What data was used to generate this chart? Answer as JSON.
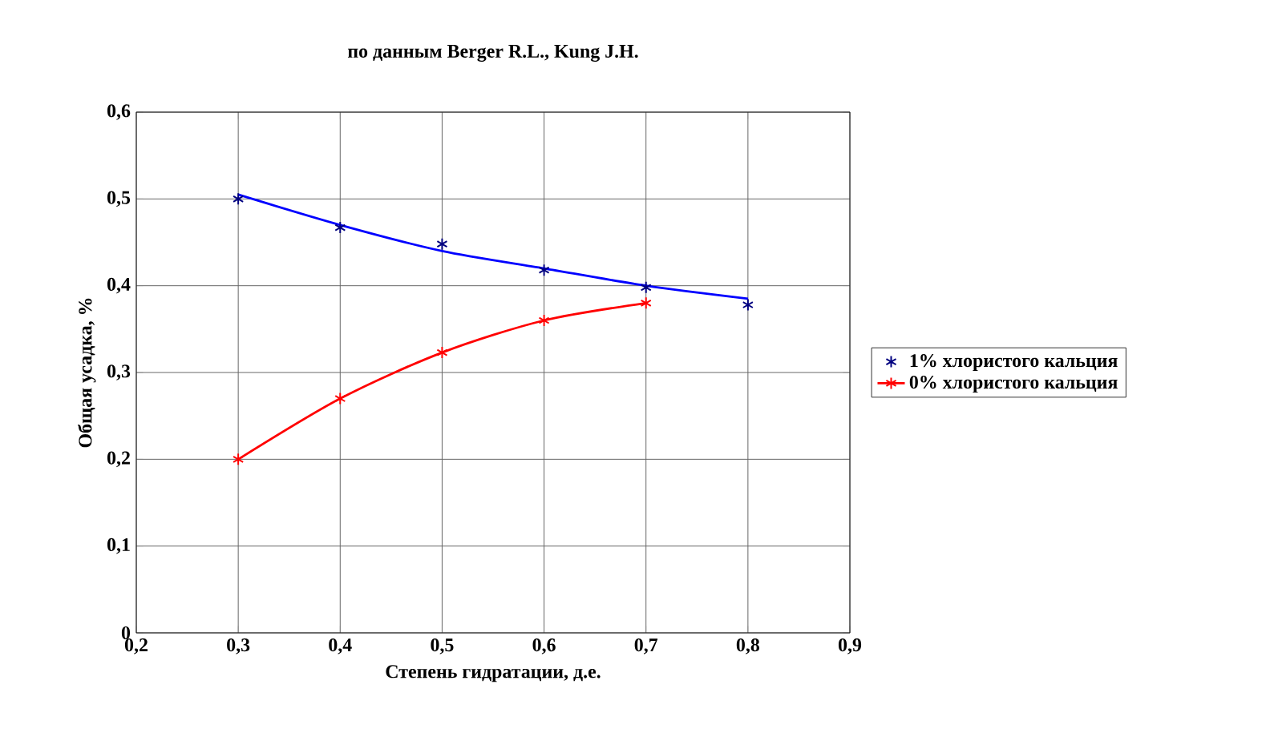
{
  "chart_data": {
    "type": "line",
    "title": "по данным Berger R.L., Kung J.H.",
    "xlabel": "Степень гидратации, д.е.",
    "ylabel": "Общая усадка, %",
    "xlim": [
      0.2,
      0.9
    ],
    "ylim": [
      0,
      0.6
    ],
    "xticks": [
      {
        "value": 0.2,
        "label": "0,2"
      },
      {
        "value": 0.3,
        "label": "0,3"
      },
      {
        "value": 0.4,
        "label": "0,4"
      },
      {
        "value": 0.5,
        "label": "0,5"
      },
      {
        "value": 0.6,
        "label": "0,6"
      },
      {
        "value": 0.7,
        "label": "0,7"
      },
      {
        "value": 0.8,
        "label": "0,8"
      },
      {
        "value": 0.9,
        "label": "0,9"
      }
    ],
    "yticks": [
      0,
      {
        "value": 0.1,
        "label": "0,1"
      },
      {
        "value": 0.2,
        "label": "0,2"
      },
      {
        "value": 0.3,
        "label": "0,3"
      },
      {
        "value": 0.4,
        "label": "0,4"
      },
      {
        "value": 0.5,
        "label": "0,5"
      },
      {
        "value": 0.6,
        "label": "0,6"
      }
    ],
    "grid": true,
    "legend": "right",
    "marker": "cross",
    "series": [
      {
        "color": "#0000ff",
        "marker": "none",
        "x": [
          0.3,
          0.4,
          0.5,
          0.6,
          0.7,
          0.8
        ],
        "values": [
          0.505,
          0.47,
          0.44,
          0.42,
          0.4,
          0.385
        ]
      },
      {
        "type": "scatter",
        "name": "1% хлористого кальция",
        "color": "#000080",
        "x": [
          0.3,
          0.4,
          0.5,
          0.6,
          0.7,
          0.8
        ],
        "values": [
          0.5,
          0.467,
          0.448,
          0.418,
          0.398,
          0.378
        ]
      },
      {
        "name": "0% хлористого кальция",
        "color": "#ff0000",
        "x": [
          0.3,
          0.4,
          0.5,
          0.6,
          0.7
        ],
        "values": [
          0.2,
          0.27,
          0.323,
          0.36,
          0.38
        ]
      }
    ]
  }
}
